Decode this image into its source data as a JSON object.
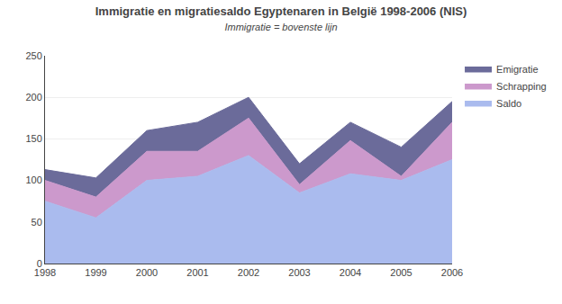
{
  "chart_data": {
    "type": "area",
    "title": "Immigratie en migratiesaldo Egyptenaren in België 1998-2006 (NIS)",
    "subtitle": "Immigratie = bovenste lijn",
    "x": [
      1998,
      1999,
      2000,
      2001,
      2002,
      2003,
      2004,
      2005,
      2006
    ],
    "series": [
      {
        "name": "Saldo",
        "color": "#aabbee",
        "values": [
          75,
          55,
          100,
          105,
          130,
          85,
          108,
          100,
          125
        ]
      },
      {
        "name": "Schrapping",
        "color": "#cc99cc",
        "values": [
          25,
          25,
          35,
          30,
          45,
          10,
          40,
          5,
          45
        ]
      },
      {
        "name": "Emigratie",
        "color": "#6b6b9a",
        "values": [
          13,
          23,
          25,
          35,
          25,
          25,
          22,
          35,
          25
        ]
      }
    ],
    "stacked": true,
    "xlim": [
      1998,
      2006
    ],
    "xticks": [
      1998,
      1999,
      2000,
      2001,
      2002,
      2003,
      2004,
      2005,
      2006
    ],
    "ylim": [
      0,
      250
    ],
    "yticks": [
      0,
      50,
      100,
      150,
      200,
      250
    ],
    "grid": true
  }
}
